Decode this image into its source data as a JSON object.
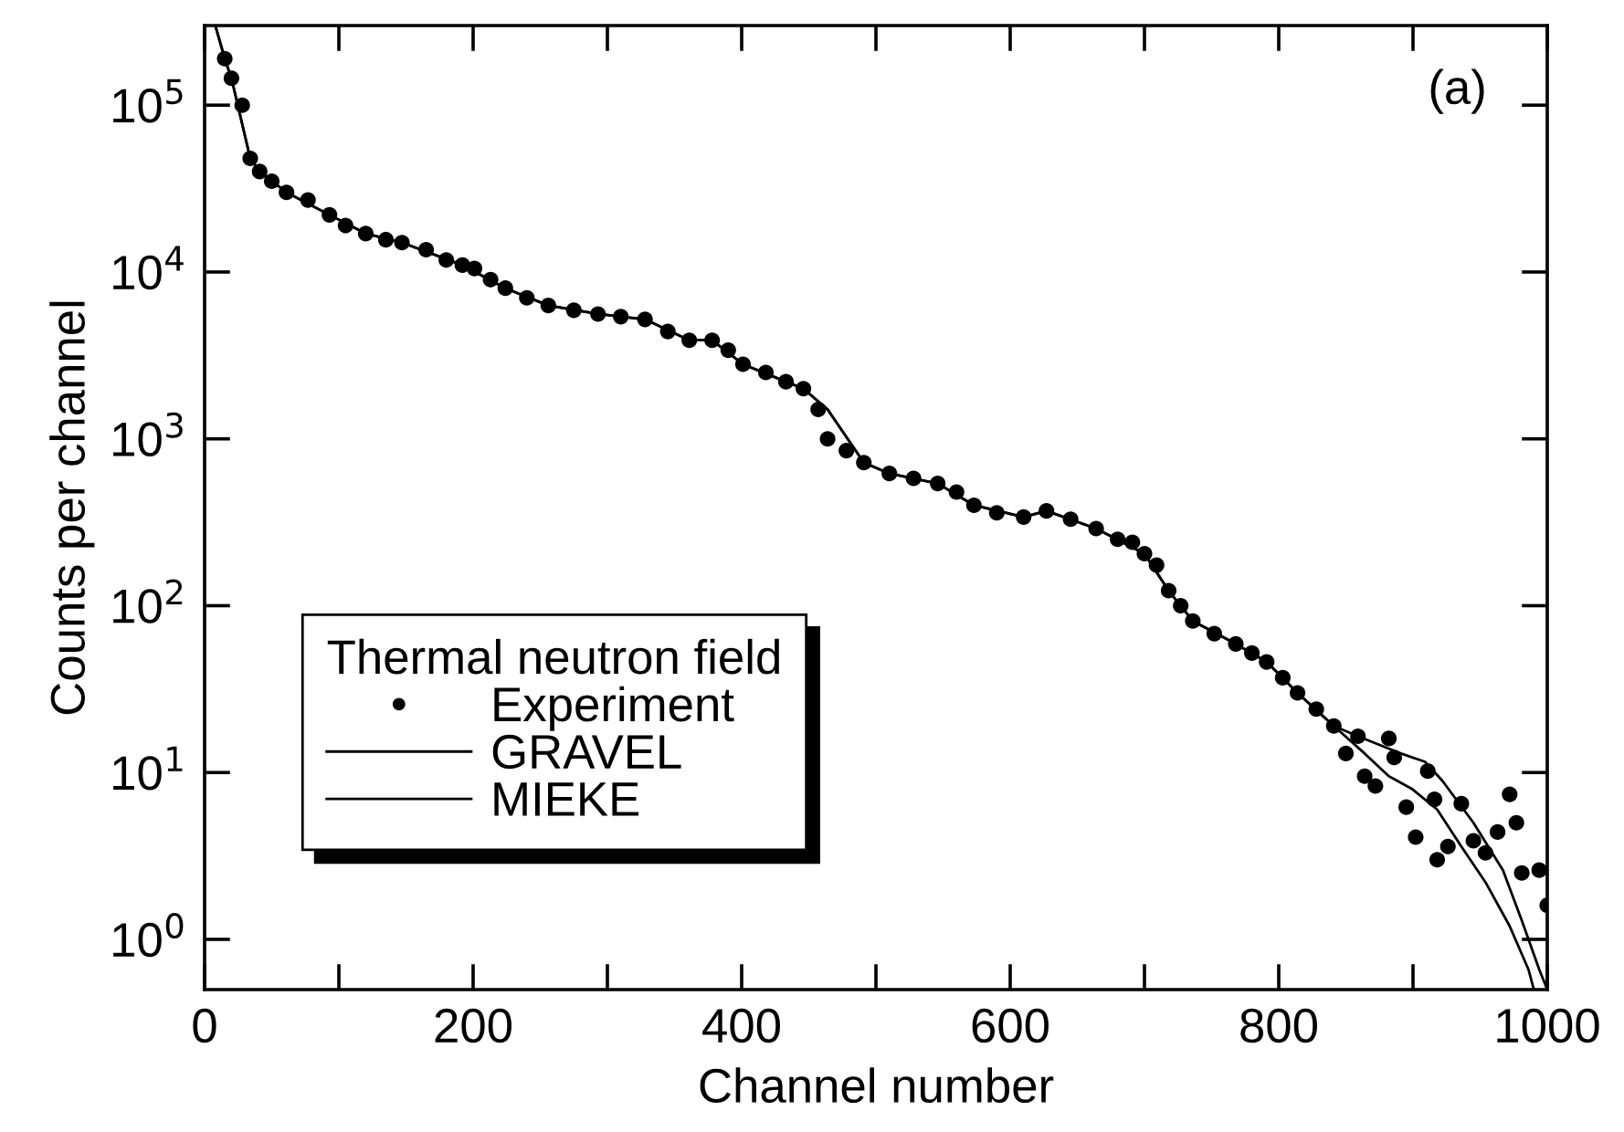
{
  "chart_data": {
    "type": "scatter",
    "xlabel": "Channel number",
    "ylabel": "Counts per channel",
    "legend_title": "Thermal neutron field",
    "annotations": [
      "(a)"
    ],
    "log": "y",
    "xlim": [
      0,
      1000
    ],
    "ylim": [
      0.5,
      300000
    ],
    "xticks": [
      0,
      {
        "value": 100,
        "label": null
      },
      200,
      {
        "value": 300,
        "label": null
      },
      400,
      {
        "value": 500,
        "label": null
      },
      600,
      {
        "value": 700,
        "label": null
      },
      800,
      {
        "value": 900,
        "label": null
      },
      1000
    ],
    "yticks": [
      {
        "value": 1,
        "label": "10$^{0}$"
      },
      {
        "value": 10,
        "label": "10$^{1}$"
      },
      {
        "value": 100,
        "label": "10$^{2}$"
      },
      {
        "value": 1000,
        "label": "10$^{3}$"
      },
      {
        "value": 10000,
        "label": "10$^{4}$"
      },
      {
        "value": 100000,
        "label": "10$^{5}$"
      }
    ],
    "grid": false,
    "legend": "bottom left",
    "series": [
      {
        "name": "Experiment",
        "marker": "circle",
        "color": "#000000",
        "x": [
          15,
          20,
          28,
          34,
          41,
          50,
          61,
          77,
          93,
          105,
          120,
          135,
          147,
          165,
          180,
          192,
          201,
          213,
          224,
          240,
          256,
          275,
          293,
          310,
          328,
          345,
          361,
          378,
          390,
          401,
          418,
          433,
          446,
          457,
          464,
          478,
          491,
          510,
          528,
          546,
          560,
          573,
          590,
          610,
          627,
          645,
          664,
          680,
          691,
          700,
          709,
          718,
          727,
          736,
          752,
          768,
          780,
          791,
          803,
          814,
          828,
          841,
          850,
          859,
          864,
          872,
          882,
          886,
          895,
          902,
          911,
          916,
          918,
          926,
          936,
          945,
          954,
          963,
          972,
          977,
          981,
          994,
          1000
        ],
        "values": [
          190000,
          145000,
          100000,
          48000,
          40000,
          35000,
          30000,
          27000,
          22000,
          19000,
          17000,
          15600,
          15000,
          13600,
          11800,
          11000,
          10500,
          9000,
          8000,
          7000,
          6300,
          5900,
          5600,
          5400,
          5200,
          4400,
          3900,
          3900,
          3400,
          2800,
          2500,
          2200,
          2000,
          1500,
          1000,
          850,
          720,
          620,
          580,
          540,
          480,
          400,
          360,
          340,
          370,
          330,
          290,
          250,
          240,
          205,
          175,
          123,
          100,
          81,
          68,
          59,
          52,
          46,
          37,
          30,
          24,
          19,
          13,
          16.5,
          9.5,
          8.3,
          16,
          12.3,
          6.2,
          4.1,
          10.2,
          6.9,
          3.0,
          3.6,
          6.5,
          3.9,
          3.3,
          4.4,
          7.4,
          5.0,
          2.5,
          2.6,
          1.6
        ]
      },
      {
        "name": "GRAVEL",
        "type": "line",
        "marker": "none",
        "line_style": "solid",
        "color": "#000000",
        "x": [
          8,
          15,
          20,
          34,
          41,
          61,
          93,
          120,
          147,
          192,
          224,
          256,
          293,
          328,
          361,
          378,
          401,
          433,
          446,
          464,
          491,
          510,
          546,
          573,
          610,
          627,
          664,
          700,
          718,
          736,
          768,
          791,
          814,
          841,
          859,
          891,
          909,
          922,
          945,
          967,
          981,
          994,
          1000
        ],
        "values": [
          300000,
          190000,
          145000,
          48000,
          40000,
          30000,
          22000,
          17000,
          15000,
          11000,
          8000,
          6300,
          5600,
          5200,
          3900,
          3900,
          2800,
          2200,
          2000,
          1500,
          720,
          620,
          540,
          400,
          340,
          370,
          290,
          205,
          123,
          81,
          59,
          46,
          30,
          19,
          16.5,
          13,
          11.6,
          8.9,
          5.0,
          2.6,
          1.3,
          0.66,
          0.5
        ]
      },
      {
        "name": "MIEKE",
        "type": "line",
        "marker": "none",
        "line_style": "solid",
        "color": "#000000",
        "x": [
          8,
          15,
          20,
          34,
          41,
          61,
          93,
          120,
          147,
          192,
          224,
          256,
          293,
          328,
          361,
          378,
          401,
          433,
          446,
          464,
          491,
          510,
          546,
          573,
          610,
          627,
          664,
          700,
          718,
          736,
          768,
          791,
          814,
          841,
          864,
          882,
          899,
          918,
          936,
          954,
          972,
          986,
          990
        ],
        "values": [
          300000,
          190000,
          145000,
          48000,
          40000,
          30000,
          22000,
          17000,
          15000,
          11000,
          8000,
          6300,
          5600,
          5200,
          3900,
          3900,
          2800,
          2200,
          2000,
          1500,
          720,
          620,
          540,
          400,
          340,
          370,
          290,
          205,
          123,
          81,
          59,
          46,
          30,
          19,
          13,
          9.5,
          8.0,
          6.0,
          3.6,
          2.2,
          1.2,
          0.66,
          0.5
        ]
      }
    ]
  }
}
